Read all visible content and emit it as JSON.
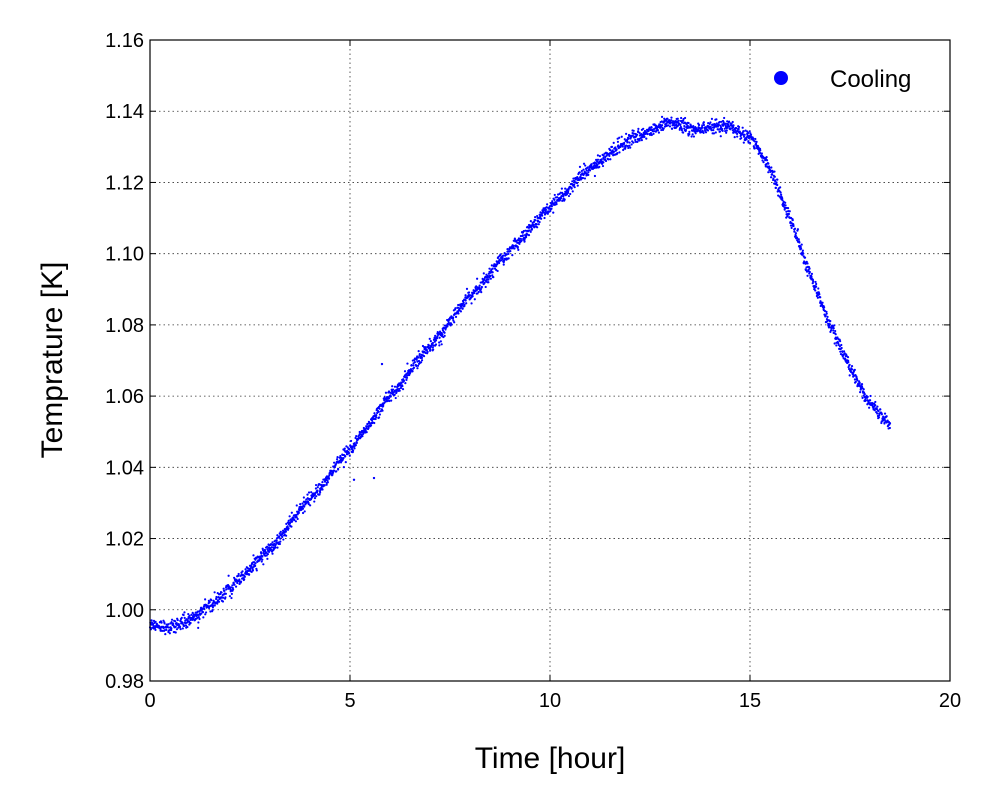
{
  "chart_data": {
    "type": "scatter",
    "title": "",
    "xlabel": "Time [hour]",
    "ylabel": "Temprature [K]",
    "xlim": [
      0,
      20
    ],
    "ylim": [
      0.98,
      1.16
    ],
    "x_ticks": [
      "0",
      "5",
      "10",
      "15",
      "20"
    ],
    "y_ticks": [
      "0.98",
      "1.00",
      "1.02",
      "1.04",
      "1.06",
      "1.08",
      "1.10",
      "1.12",
      "1.14",
      "1.16"
    ],
    "grid": true,
    "legend_position": "top-right",
    "series": [
      {
        "name": "Cooling",
        "color": "#0000ff",
        "marker": "dot",
        "trend": {
          "x": [
            0,
            0.5,
            1.0,
            1.5,
            2.0,
            3.0,
            4.0,
            5.0,
            6.0,
            7.0,
            8.0,
            9.0,
            10.0,
            11.0,
            12.0,
            13.0,
            13.5,
            14.0,
            14.5,
            15.0,
            15.5,
            16.0,
            16.5,
            17.0,
            17.5,
            18.0,
            18.5
          ],
          "y": [
            0.996,
            0.995,
            0.997,
            1.001,
            1.006,
            1.017,
            1.031,
            1.045,
            1.06,
            1.074,
            1.088,
            1.101,
            1.113,
            1.124,
            1.132,
            1.137,
            1.135,
            1.1355,
            1.1355,
            1.133,
            1.124,
            1.11,
            1.094,
            1.08,
            1.068,
            1.058,
            1.052
          ]
        },
        "outliers": [
          {
            "x": 5.1,
            "y": 1.0365
          },
          {
            "x": 5.6,
            "y": 1.037
          },
          {
            "x": 5.8,
            "y": 1.069
          }
        ]
      }
    ]
  }
}
